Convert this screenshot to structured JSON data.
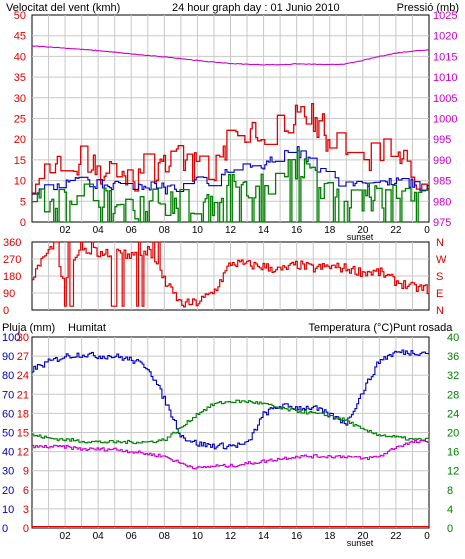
{
  "header": {
    "wind_title": "Velocitat del vent (kmh)",
    "main_title": "24 hour graph day : 01 Junio 2010",
    "pressure_title": "Pressió (mb)"
  },
  "bottom_header": {
    "rain_title": "Pluja (mm)",
    "humidity_title": "Humitat",
    "temperature_title": "Temperatura (°C)",
    "dewpoint_title": "Punt rosada"
  },
  "x_ticks": [
    "02",
    "04",
    "06",
    "08",
    "10",
    "12",
    "14",
    "16",
    "18",
    "20",
    "22",
    "0"
  ],
  "sunset_label": "sunset",
  "colors": {
    "wind": "#e00000",
    "wind_avg": "#0000c0",
    "wind_min": "#008000",
    "pressure": "#cc00cc",
    "direction": "#e00000",
    "rain": "#e00000",
    "humidity": "#0000c0",
    "temperature": "#008000",
    "dewpoint": "#cc00cc",
    "grid": "#c8c8c8"
  },
  "chart_data": [
    {
      "type": "line",
      "title": "24 hour graph day : 01 Junio 2010",
      "x": [
        0,
        1,
        2,
        3,
        4,
        5,
        6,
        7,
        8,
        9,
        10,
        11,
        12,
        13,
        14,
        15,
        16,
        17,
        18,
        19,
        20,
        21,
        22,
        23,
        24
      ],
      "ylabel_left": "Velocitat del vent (kmh)",
      "ylabel_right": "Pressió (mb)",
      "ylim_left": [
        0,
        50
      ],
      "yticks_left": [
        "0",
        "5",
        "10",
        "15",
        "20",
        "25",
        "30",
        "35",
        "40",
        "45",
        "50"
      ],
      "ylim_right": [
        975,
        1025
      ],
      "yticks_right": [
        "975",
        "980",
        "985",
        "990",
        "995",
        "1000",
        "1005",
        "1010",
        "1015",
        "1020",
        "1025"
      ],
      "grid": true,
      "series": [
        {
          "key": "gust",
          "axis": "left",
          "values": [
            11,
            13,
            12,
            15,
            12,
            11,
            10,
            14,
            13,
            15,
            13,
            12,
            20,
            22,
            22,
            24,
            27,
            25,
            20,
            17,
            15,
            17,
            16,
            12,
            11
          ]
        },
        {
          "key": "average",
          "axis": "left",
          "values": [
            8,
            9,
            9,
            10,
            9,
            9,
            9,
            9,
            8,
            8,
            10,
            10,
            13,
            14,
            14,
            16,
            17,
            14,
            11,
            9,
            10,
            9,
            10,
            9,
            8
          ]
        },
        {
          "key": "minimum",
          "axis": "left",
          "values": [
            4,
            5,
            6,
            6,
            5,
            5,
            4,
            5,
            5,
            6,
            5,
            5,
            9,
            9,
            9,
            11,
            14,
            10,
            8,
            4,
            6,
            6,
            6,
            5,
            6
          ]
        },
        {
          "key": "pressure",
          "axis": "right",
          "values": [
            1017.5,
            1017.3,
            1017,
            1016.7,
            1016.4,
            1016,
            1015.6,
            1015.2,
            1014.9,
            1014.5,
            1014,
            1013.6,
            1013.3,
            1013.1,
            1013,
            1013,
            1013.2,
            1013.1,
            1013,
            1013.2,
            1014,
            1015,
            1015.8,
            1016.3,
            1016.6
          ]
        }
      ]
    },
    {
      "type": "line",
      "x": [
        0,
        1,
        2,
        3,
        4,
        5,
        6,
        7,
        8,
        9,
        10,
        11,
        12,
        13,
        14,
        15,
        16,
        17,
        18,
        19,
        20,
        21,
        22,
        23,
        24
      ],
      "ylim": [
        0,
        360
      ],
      "yticks_left": [
        "0",
        "90",
        "180",
        "270",
        "360"
      ],
      "yticks_right": [
        "N",
        "E",
        "S",
        "W",
        "N"
      ],
      "grid": true,
      "series": [
        {
          "key": "direction",
          "values": [
            180,
            340,
            150,
            330,
            300,
            310,
            280,
            320,
            150,
            30,
            40,
            100,
            250,
            240,
            230,
            210,
            240,
            220,
            230,
            220,
            200,
            200,
            150,
            120,
            110
          ]
        }
      ]
    },
    {
      "type": "line",
      "x": [
        0,
        1,
        2,
        3,
        4,
        5,
        6,
        7,
        8,
        9,
        10,
        11,
        12,
        13,
        14,
        15,
        16,
        17,
        18,
        19,
        20,
        21,
        22,
        23,
        24
      ],
      "ylabel_left": "Pluja (mm)",
      "ylabel_left2": "Humitat",
      "ylabel_right": "Temperatura (°C)",
      "ylabel_right2": "Punt rosada",
      "ylim_rain": [
        0,
        30
      ],
      "yticks_rain": [
        "0",
        "3",
        "6",
        "9",
        "12",
        "15",
        "18",
        "21",
        "24",
        "27",
        "30"
      ],
      "ylim_humidity": [
        0,
        100
      ],
      "yticks_humidity": [
        "0",
        "10",
        "20",
        "30",
        "40",
        "50",
        "60",
        "70",
        "80",
        "90",
        "100"
      ],
      "ylim_temp": [
        0,
        40
      ],
      "yticks_temp": [
        "0",
        "4",
        "8",
        "12",
        "16",
        "20",
        "24",
        "28",
        "32",
        "36",
        "40"
      ],
      "grid": true,
      "series": [
        {
          "key": "rain",
          "axis": "rain",
          "values": [
            0,
            0,
            0,
            0,
            0,
            0,
            0,
            0,
            0,
            0,
            0,
            0,
            0,
            0,
            0,
            0,
            0,
            0,
            0,
            0,
            0,
            0,
            0,
            0,
            0
          ]
        },
        {
          "key": "humidity",
          "axis": "humidity",
          "values": [
            83,
            87,
            90,
            91,
            90,
            90,
            88,
            84,
            67,
            48,
            44,
            43,
            43,
            44,
            60,
            64,
            63,
            63,
            59,
            55,
            72,
            88,
            92,
            92,
            92
          ]
        },
        {
          "key": "temperature",
          "axis": "temp",
          "values": [
            19.5,
            18.8,
            18.5,
            18.2,
            18,
            18,
            18,
            18,
            18.5,
            21,
            24,
            26,
            26.5,
            26.5,
            26,
            25,
            24.5,
            24,
            23.5,
            22.5,
            20.5,
            19.5,
            19,
            18.5,
            18.5
          ]
        },
        {
          "key": "dewpoint",
          "axis": "temp",
          "values": [
            17,
            17,
            17,
            16.5,
            16.5,
            16.5,
            16,
            15.5,
            15,
            13.5,
            12.5,
            13,
            13,
            13.5,
            14,
            14.5,
            15,
            15,
            15,
            15,
            14.5,
            15,
            17,
            18,
            18
          ]
        }
      ]
    }
  ]
}
